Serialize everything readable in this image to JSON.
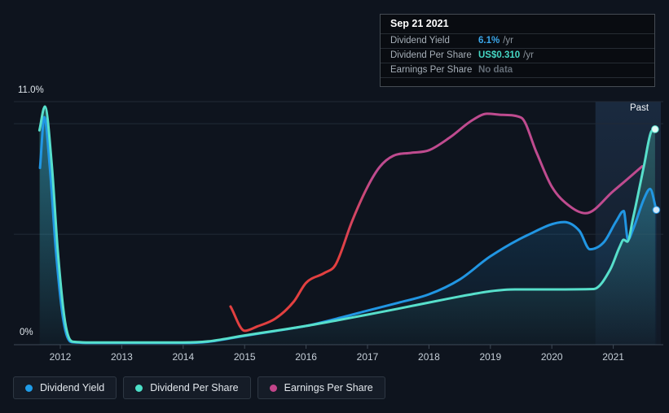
{
  "tooltip": {
    "date": "Sep 21 2021",
    "rows": [
      {
        "label": "Dividend Yield",
        "value": "6.1%",
        "suffix": "/yr",
        "value_color": "#3ba7ea"
      },
      {
        "label": "Dividend Per Share",
        "value": "US$0.310",
        "suffix": "/yr",
        "value_color": "#45d7c4"
      },
      {
        "label": "Earnings Per Share",
        "value": "No data",
        "suffix": "",
        "value_color": "#646d77"
      }
    ]
  },
  "chart_data": {
    "type": "line",
    "title": "Dividend history chart",
    "x_ticks": [
      2012,
      2013,
      2014,
      2015,
      2016,
      2017,
      2018,
      2019,
      2020,
      2021
    ],
    "y_axis": {
      "top_label": "11.0%",
      "zero_label": "0%",
      "ylim": [
        0,
        11
      ],
      "gridlines_pct": [
        11,
        10,
        5,
        0
      ]
    },
    "past_label": "Past",
    "past_start_year": 2020.71,
    "grid_color": "#212a37",
    "axis_color": "#3f4956",
    "tick_label_color": "#c6cfd8",
    "past_band_color": "#4a82c4",
    "series": [
      {
        "name": "Dividend Yield",
        "color": "#2196e3",
        "area": true,
        "end_dot": true,
        "dot_fill": "#d2e8fa",
        "points": [
          [
            2011.67,
            8.0
          ],
          [
            2011.74,
            10.3
          ],
          [
            2011.83,
            8.0
          ],
          [
            2011.93,
            4.2
          ],
          [
            2012.05,
            1.1
          ],
          [
            2012.18,
            0.12
          ],
          [
            2012.6,
            0.08
          ],
          [
            2013,
            0.08
          ],
          [
            2013.5,
            0.08
          ],
          [
            2014,
            0.08
          ],
          [
            2014.4,
            0.13
          ],
          [
            2015,
            0.4
          ],
          [
            2015.5,
            0.62
          ],
          [
            2016,
            0.85
          ],
          [
            2016.5,
            1.18
          ],
          [
            2017,
            1.54
          ],
          [
            2017.5,
            1.9
          ],
          [
            2018,
            2.28
          ],
          [
            2018.5,
            2.95
          ],
          [
            2019,
            4.0
          ],
          [
            2019.6,
            4.95
          ],
          [
            2020.2,
            5.55
          ],
          [
            2020.45,
            5.15
          ],
          [
            2020.62,
            4.32
          ],
          [
            2020.85,
            4.65
          ],
          [
            2021.05,
            5.6
          ],
          [
            2021.17,
            6.05
          ],
          [
            2021.24,
            4.75
          ],
          [
            2021.32,
            5.2
          ],
          [
            2021.5,
            6.6
          ],
          [
            2021.6,
            7.05
          ],
          [
            2021.7,
            6.1
          ]
        ]
      },
      {
        "name": "Dividend Per Share",
        "color": "#57dfcb",
        "area": true,
        "end_dot": true,
        "dot_fill": "#e4faf6",
        "points": [
          [
            2011.66,
            9.7
          ],
          [
            2011.75,
            10.78
          ],
          [
            2011.86,
            8.2
          ],
          [
            2011.96,
            4.2
          ],
          [
            2012.08,
            1.0
          ],
          [
            2012.2,
            0.14
          ],
          [
            2012.6,
            0.1
          ],
          [
            2013,
            0.1
          ],
          [
            2013.5,
            0.1
          ],
          [
            2014,
            0.1
          ],
          [
            2014.4,
            0.15
          ],
          [
            2015,
            0.42
          ],
          [
            2015.5,
            0.63
          ],
          [
            2016,
            0.85
          ],
          [
            2016.5,
            1.1
          ],
          [
            2017,
            1.36
          ],
          [
            2017.5,
            1.63
          ],
          [
            2018,
            1.91
          ],
          [
            2018.5,
            2.18
          ],
          [
            2019,
            2.42
          ],
          [
            2019.4,
            2.5
          ],
          [
            2020,
            2.5
          ],
          [
            2020.68,
            2.52
          ],
          [
            2020.95,
            3.4
          ],
          [
            2021.1,
            4.4
          ],
          [
            2021.17,
            4.75
          ],
          [
            2021.23,
            4.66
          ],
          [
            2021.32,
            5.7
          ],
          [
            2021.5,
            8.1
          ],
          [
            2021.62,
            9.65
          ],
          [
            2021.68,
            9.75
          ]
        ]
      },
      {
        "name": "Earnings Per Share",
        "color": "#bf4b8f",
        "area": false,
        "end_dot": false,
        "gradient_from": "#e24040",
        "gradient_span_years": [
          2016.55,
          2017.1
        ],
        "points": [
          [
            2014.77,
            1.73
          ],
          [
            2015.0,
            0.63
          ],
          [
            2015.2,
            0.82
          ],
          [
            2015.5,
            1.18
          ],
          [
            2015.8,
            1.95
          ],
          [
            2016.0,
            2.8
          ],
          [
            2016.3,
            3.25
          ],
          [
            2016.48,
            3.62
          ],
          [
            2016.75,
            5.6
          ],
          [
            2017.0,
            7.14
          ],
          [
            2017.2,
            8.05
          ],
          [
            2017.42,
            8.55
          ],
          [
            2017.7,
            8.68
          ],
          [
            2018.0,
            8.8
          ],
          [
            2018.35,
            9.4
          ],
          [
            2018.7,
            10.15
          ],
          [
            2018.95,
            10.45
          ],
          [
            2019.2,
            10.4
          ],
          [
            2019.5,
            10.28
          ],
          [
            2019.75,
            8.7
          ],
          [
            2020.0,
            7.15
          ],
          [
            2020.3,
            6.25
          ],
          [
            2020.55,
            5.95
          ],
          [
            2021.0,
            6.95
          ],
          [
            2021.47,
            8.07
          ]
        ]
      }
    ],
    "legend": [
      {
        "label": "Dividend Yield",
        "color": "#1f9ce8"
      },
      {
        "label": "Dividend Per Share",
        "color": "#4ce0c8"
      },
      {
        "label": "Earnings Per Share",
        "color": "#c2458a"
      }
    ]
  }
}
